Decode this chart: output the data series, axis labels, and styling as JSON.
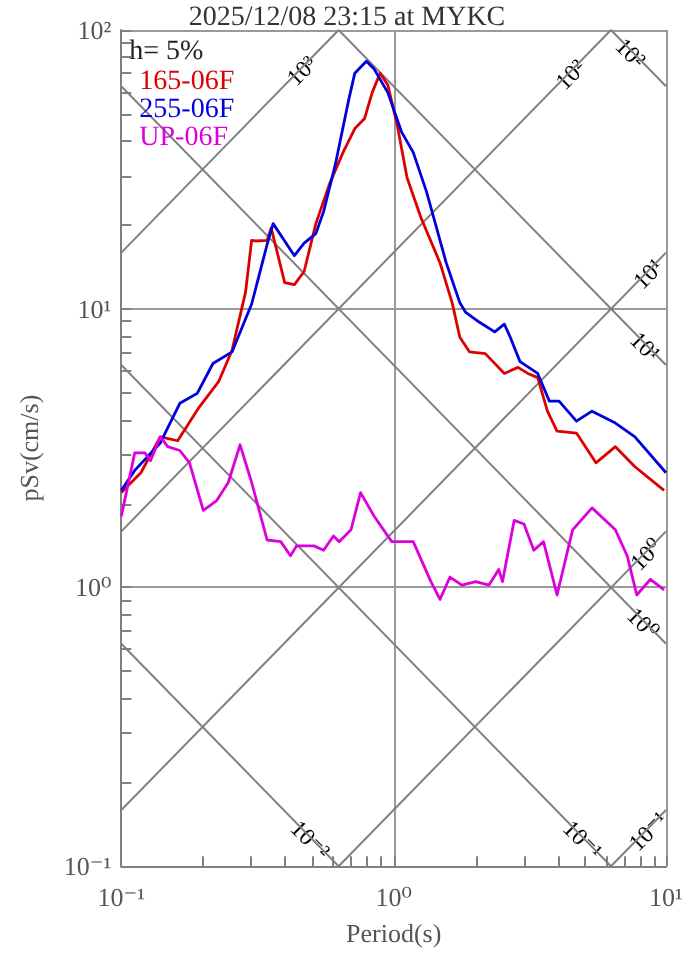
{
  "chart_data": {
    "type": "line",
    "title": "2025/12/08 23:15 at MYKC",
    "xlabel": "Period(s)",
    "ylabel": "pSv(cm/s)",
    "log": "xy",
    "grid": true,
    "legend": "top left",
    "xlim": [
      0.1,
      10
    ],
    "ylim": [
      0.1,
      100
    ],
    "xticks": [
      {
        "value": 0.1,
        "label": "10⁻¹"
      },
      {
        "value": 0.2,
        "label": null
      },
      {
        "value": 0.3,
        "label": null
      },
      {
        "value": 0.4,
        "label": null
      },
      {
        "value": 0.5,
        "label": null
      },
      {
        "value": 0.6,
        "label": null
      },
      {
        "value": 0.7,
        "label": null
      },
      {
        "value": 0.8,
        "label": null
      },
      {
        "value": 0.9,
        "label": null
      },
      {
        "value": 1,
        "label": "10⁰"
      },
      {
        "value": 2,
        "label": null
      },
      {
        "value": 3,
        "label": null
      },
      {
        "value": 4,
        "label": null
      },
      {
        "value": 5,
        "label": null
      },
      {
        "value": 6,
        "label": null
      },
      {
        "value": 7,
        "label": null
      },
      {
        "value": 8,
        "label": null
      },
      {
        "value": 9,
        "label": null
      },
      {
        "value": 10,
        "label": "10¹"
      }
    ],
    "yticks": [
      {
        "value": 0.1,
        "label": "10⁻¹"
      },
      {
        "value": 0.2,
        "label": null
      },
      {
        "value": 0.3,
        "label": null
      },
      {
        "value": 0.4,
        "label": null
      },
      {
        "value": 0.5,
        "label": null
      },
      {
        "value": 0.6,
        "label": null
      },
      {
        "value": 0.7,
        "label": null
      },
      {
        "value": 0.8,
        "label": null
      },
      {
        "value": 0.9,
        "label": null
      },
      {
        "value": 1,
        "label": "10⁰"
      },
      {
        "value": 2,
        "label": null
      },
      {
        "value": 3,
        "label": null
      },
      {
        "value": 4,
        "label": null
      },
      {
        "value": 5,
        "label": null
      },
      {
        "value": 6,
        "label": null
      },
      {
        "value": 7,
        "label": null
      },
      {
        "value": 8,
        "label": null
      },
      {
        "value": 9,
        "label": null
      },
      {
        "value": 10,
        "label": "10¹"
      },
      {
        "value": 20,
        "label": null
      },
      {
        "value": 30,
        "label": null
      },
      {
        "value": 40,
        "label": null
      },
      {
        "value": 50,
        "label": null
      },
      {
        "value": 60,
        "label": null
      },
      {
        "value": 70,
        "label": null
      },
      {
        "value": 80,
        "label": null
      },
      {
        "value": 90,
        "label": null
      },
      {
        "value": 100,
        "label": "10²"
      }
    ],
    "series": [
      {
        "color": "#808080",
        "x": [
          0.1,
          0.628
        ],
        "values": [
          15.9,
          100
        ]
      },
      {
        "color": "#808080",
        "x": [
          0.1,
          6.28
        ],
        "values": [
          1.59,
          100
        ]
      },
      {
        "color": "#808080",
        "x": [
          0.1,
          10
        ],
        "values": [
          0.159,
          15.9
        ]
      },
      {
        "color": "#808080",
        "x": [
          0.628,
          10
        ],
        "values": [
          0.1,
          1.59
        ]
      },
      {
        "color": "#808080",
        "x": [
          6.28,
          10
        ],
        "values": [
          0.1,
          0.159
        ]
      },
      {
        "color": "#808080",
        "x": [
          6.28,
          10
        ],
        "values": [
          100,
          62.8
        ]
      },
      {
        "color": "#808080",
        "x": [
          0.628,
          10
        ],
        "values": [
          100,
          6.28
        ]
      },
      {
        "color": "#808080",
        "x": [
          0.1,
          10
        ],
        "values": [
          62.8,
          0.628
        ]
      },
      {
        "color": "#808080",
        "x": [
          0.1,
          6.28
        ],
        "values": [
          6.28,
          0.1
        ]
      },
      {
        "color": "#808080",
        "x": [
          0.1,
          0.628
        ],
        "values": [
          0.628,
          0.1
        ]
      },
      {
        "name": "165-06F",
        "color": "#dd0000",
        "x": [
          0.1,
          0.118,
          0.139,
          0.161,
          0.193,
          0.228,
          0.255,
          0.286,
          0.301,
          0.311,
          0.343,
          0.355,
          0.398,
          0.432,
          0.469,
          0.518,
          0.581,
          0.652,
          0.72,
          0.781,
          0.834,
          0.891,
          0.952,
          1.03,
          1.12,
          1.26,
          1.48,
          1.64,
          1.75,
          1.9,
          2.17,
          2.55,
          2.86,
          3.11,
          3.38,
          3.67,
          3.98,
          4.69,
          5.53,
          6.52,
          7.69,
          9.84
        ],
        "values": [
          2.19,
          2.58,
          3.47,
          3.36,
          4.43,
          5.49,
          7.1,
          11.5,
          17.6,
          17.5,
          17.6,
          19.5,
          12.4,
          12.2,
          13.6,
          20.2,
          28,
          36.4,
          44.3,
          48,
          59.6,
          70,
          63.5,
          45.7,
          29.5,
          21.2,
          14.6,
          10.5,
          7.9,
          7.0,
          6.9,
          5.86,
          6.16,
          5.86,
          5.66,
          4.29,
          3.64,
          3.58,
          2.8,
          3.2,
          2.71,
          2.23
        ]
      },
      {
        "name": "255-06F",
        "color": "#0000dd",
        "x": [
          0.1,
          0.112,
          0.139,
          0.164,
          0.19,
          0.217,
          0.255,
          0.301,
          0.343,
          0.361,
          0.432,
          0.469,
          0.518,
          0.553,
          0.611,
          0.685,
          0.72,
          0.794,
          0.848,
          0.952,
          1.07,
          1.18,
          1.32,
          1.56,
          1.75,
          1.84,
          2.06,
          2.35,
          2.55,
          2.68,
          2.91,
          3.38,
          3.73,
          4.05,
          4.69,
          5.35,
          6.52,
          7.69,
          10
        ],
        "values": [
          2.23,
          2.63,
          3.3,
          4.58,
          4.97,
          6.36,
          7.0,
          10.4,
          17.0,
          20.2,
          15.5,
          17.2,
          18.6,
          22.3,
          33,
          56.6,
          70,
          77.3,
          72.4,
          59.6,
          43,
          36.4,
          26.3,
          14.6,
          10.5,
          9.7,
          8.96,
          8.26,
          8.8,
          7.9,
          6.46,
          5.86,
          4.66,
          4.66,
          3.95,
          4.29,
          3.89,
          3.47,
          2.58
        ]
      },
      {
        "name": "UP-06F",
        "color": "#dd00dd",
        "x": [
          0.1,
          0.112,
          0.122,
          0.128,
          0.139,
          0.148,
          0.164,
          0.178,
          0.2,
          0.224,
          0.247,
          0.273,
          0.301,
          0.343,
          0.385,
          0.418,
          0.44,
          0.51,
          0.553,
          0.601,
          0.631,
          0.697,
          0.756,
          0.848,
          0.984,
          1.18,
          1.37,
          1.48,
          1.61,
          1.78,
          2.0,
          2.24,
          2.43,
          2.51,
          2.77,
          3.01,
          3.27,
          3.55,
          3.98,
          4.54,
          5.35,
          6.52,
          7.2,
          7.81,
          8.77,
          9.84
        ],
        "values": [
          1.8,
          3.04,
          3.04,
          2.85,
          3.47,
          3.2,
          3.1,
          2.8,
          1.89,
          2.05,
          2.38,
          3.25,
          2.38,
          1.48,
          1.46,
          1.3,
          1.41,
          1.41,
          1.36,
          1.53,
          1.46,
          1.61,
          2.19,
          1.8,
          1.46,
          1.46,
          1.05,
          0.906,
          1.09,
          1.02,
          1.05,
          1.02,
          1.16,
          1.05,
          1.74,
          1.69,
          1.36,
          1.46,
          0.94,
          1.61,
          1.93,
          1.61,
          1.3,
          0.94,
          1.07,
          0.98
        ]
      }
    ],
    "annotations": [
      "h= 5%",
      {
        "text": "10³",
        "x": 0.454,
        "y": 72.3
      },
      {
        "text": "10²",
        "x": 4.4,
        "y": 70
      },
      {
        "text": "10²",
        "x": 7.5,
        "y": 83.7
      },
      {
        "text": "10¹",
        "x": 8.49,
        "y": 13.5
      },
      {
        "text": "10¹",
        "x": 8.49,
        "y": 7.4
      },
      {
        "text": "10⁰",
        "x": 8.34,
        "y": 1.33
      },
      {
        "text": "10⁰",
        "x": 8.34,
        "y": 0.753
      },
      {
        "text": "10⁻¹",
        "x": 8.5,
        "y": 0.135
      },
      {
        "text": "10⁻¹",
        "x": 5,
        "y": 0.126
      },
      {
        "text": "10⁻²",
        "x": 0.5,
        "y": 0.126
      }
    ]
  }
}
